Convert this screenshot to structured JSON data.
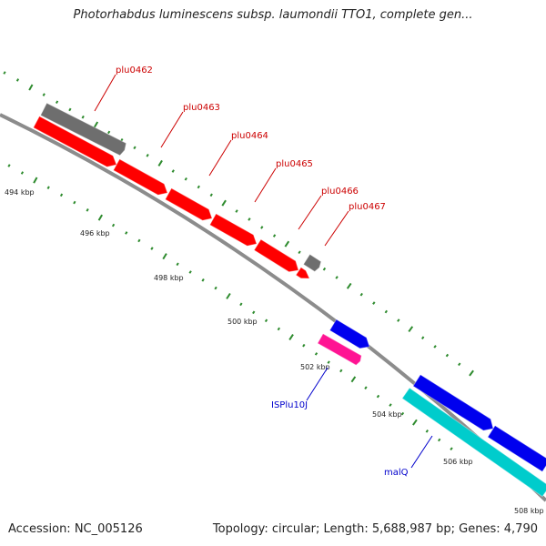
{
  "title": "Photorhabdus luminescens subsp. laumondii TTO1, complete gen...",
  "footer": {
    "accession": "Accession: NC_005126",
    "summary": "Topology: circular; Length: 5,688,987 bp; Genes: 4,790"
  },
  "scale_labels": [
    "494 kbp",
    "496 kbp",
    "498 kbp",
    "500 kbp",
    "502 kbp",
    "504 kbp",
    "506 kbp",
    "508 kbp"
  ],
  "features": [
    {
      "name": "plu0462",
      "color": "#cc0000"
    },
    {
      "name": "plu0463",
      "color": "#cc0000"
    },
    {
      "name": "plu0464",
      "color": "#cc0000"
    },
    {
      "name": "plu0465",
      "color": "#cc0000"
    },
    {
      "name": "plu0466",
      "color": "#cc0000"
    },
    {
      "name": "plu0467",
      "color": "#cc0000"
    },
    {
      "name": "ISPlu10J",
      "color": "#0000cc"
    },
    {
      "name": "malQ",
      "color": "#0000cc"
    }
  ],
  "colors": {
    "backbone": "#8c8c8c",
    "tick": "#2e8b2e",
    "cds_red": "#ff0000",
    "gene_gray": "#6e6e6e",
    "cds_blue": "#0000ee",
    "pink": "#ff1493",
    "cyan": "#00cccc"
  }
}
